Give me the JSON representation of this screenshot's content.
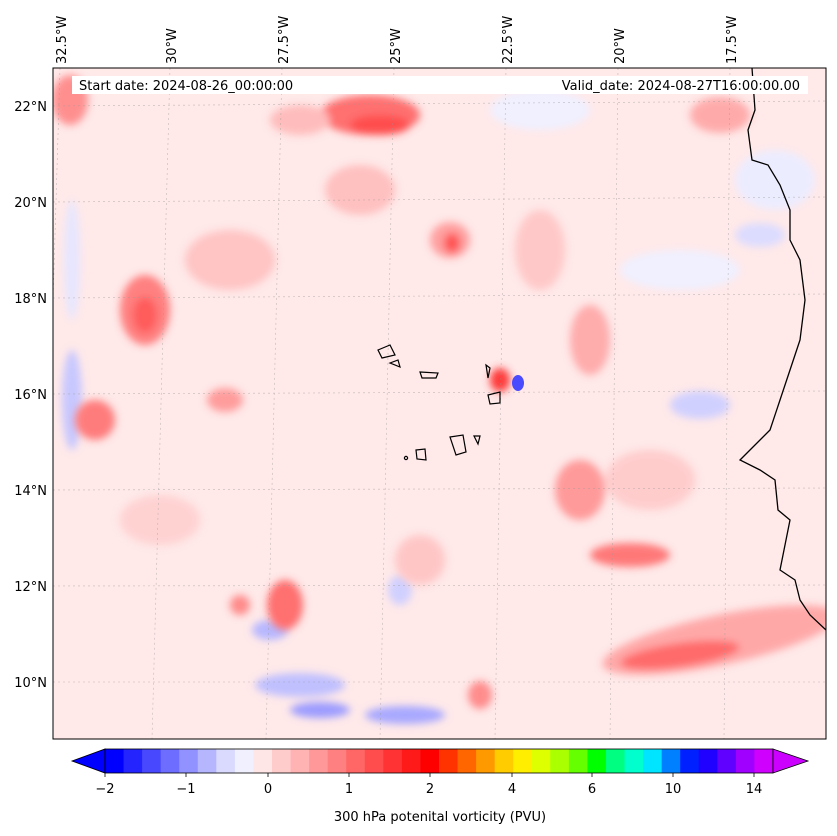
{
  "header": {
    "start_date": "Start date: 2024-08-26_00:00:00",
    "valid_date": "Valid_date: 2024-08-27T16:00:00.00"
  },
  "map": {
    "region": "Cape Verde islands / West African coast",
    "lon_labels": [
      "32.5°W",
      "30°W",
      "27.5°W",
      "25°W",
      "22.5°W",
      "20°W",
      "17.5°W"
    ],
    "lat_labels": [
      "22°N",
      "20°N",
      "18°N",
      "16°N",
      "14°N",
      "12°N",
      "10°N"
    ]
  },
  "colorbar": {
    "title": "300 hPa potenital vorticity (PVU)",
    "tick_labels": [
      "−2",
      "−1",
      "0",
      "1",
      "2",
      "4",
      "6",
      "10",
      "14"
    ],
    "colors": [
      "#0000ff",
      "#2424ff",
      "#4848ff",
      "#6d6dff",
      "#9191ff",
      "#b6b6ff",
      "#dadaff",
      "#f0f0ff",
      "#ffe6e6",
      "#ffcccc",
      "#ffb3b3",
      "#ff9999",
      "#ff8080",
      "#ff6666",
      "#ff4d4d",
      "#ff3333",
      "#ff1a1a",
      "#ff0000",
      "#ff3300",
      "#ff6600",
      "#ff9900",
      "#ffcc00",
      "#ffee00",
      "#ddff00",
      "#aaff00",
      "#66ff00",
      "#00ff00",
      "#00ff80",
      "#00ffcc",
      "#00e5ff",
      "#0080ff",
      "#0020ff",
      "#2000ff",
      "#6000ff",
      "#a000ff",
      "#d000ff"
    ]
  }
}
